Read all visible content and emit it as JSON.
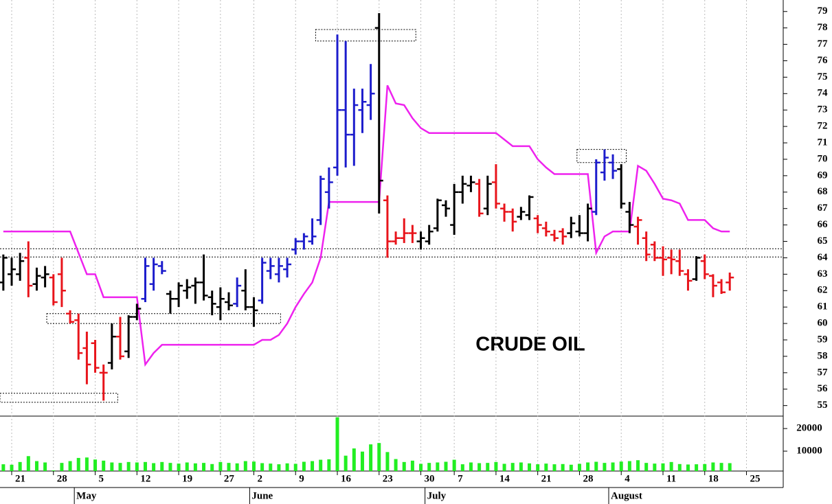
{
  "chart_data": {
    "type": "ohlc",
    "annotation": "CRUDE OIL",
    "x": [
      -1,
      0,
      1,
      2,
      3,
      4,
      5,
      6,
      7,
      8,
      9,
      10,
      11,
      12,
      13,
      14,
      15,
      16,
      17,
      18,
      19,
      20,
      21,
      22,
      23,
      24,
      25,
      26,
      27,
      28,
      29,
      30,
      31,
      32,
      33,
      34,
      35,
      36,
      37,
      38,
      39,
      40,
      41,
      42,
      43,
      44,
      45,
      46,
      47,
      48,
      49,
      50,
      51,
      52,
      53,
      54,
      55,
      56,
      57,
      58,
      59,
      60,
      61,
      62,
      63,
      64,
      65,
      66,
      67,
      68,
      69,
      70,
      71,
      72,
      73,
      74,
      75,
      76,
      77,
      78,
      79,
      80,
      81,
      82,
      83,
      84,
      85,
      86
    ],
    "open": [
      62.5,
      63.0,
      63.0,
      64.0,
      62.4,
      62.8,
      62.8,
      63.0,
      60.6,
      60.2,
      58.5,
      58.8,
      57.0,
      57.6,
      59.2,
      58.3,
      60.4,
      61.5,
      62.4,
      63.5,
      61.8,
      61.5,
      62.0,
      62.3,
      62.5,
      61.6,
      61.0,
      61.3,
      61.2,
      62.0,
      61.0,
      61.4,
      63.2,
      63.0,
      63.3,
      64.5,
      65.0,
      65.0,
      66.3,
      68.0,
      69.5,
      73.0,
      71.5,
      73.0,
      73.3,
      78.0,
      67.5,
      65.0,
      65.2,
      65.5,
      65.0,
      65.0,
      65.8,
      67.2,
      66.0,
      68.0,
      68.4,
      68.5,
      67.0,
      68.6,
      67.0,
      66.8,
      66.5,
      66.6,
      66.4,
      65.8,
      65.4,
      65.6,
      65.5,
      65.6,
      65.5,
      66.8,
      69.2,
      69.8,
      69.4,
      66.8,
      65.9,
      65.2,
      64.8,
      64.0,
      64.0,
      63.8,
      63.0,
      62.7,
      63.8,
      62.9,
      62.5,
      62.5
    ],
    "high": [
      64.2,
      64.0,
      64.3,
      65.0,
      63.4,
      63.5,
      63.0,
      64.0,
      60.8,
      60.6,
      59.5,
      59.0,
      57.5,
      60.0,
      60.4,
      60.5,
      61.2,
      64.0,
      64.0,
      63.8,
      62.0,
      62.5,
      62.7,
      62.8,
      64.2,
      62.0,
      62.2,
      61.9,
      62.8,
      63.3,
      61.6,
      64.0,
      64.0,
      64.0,
      64.0,
      65.2,
      65.5,
      66.4,
      69.0,
      69.5,
      77.6,
      77.2,
      74.3,
      74.3,
      75.8,
      78.9,
      67.8,
      65.6,
      66.4,
      66.0,
      65.6,
      66.0,
      67.6,
      67.5,
      68.5,
      69.0,
      69.0,
      68.8,
      69.0,
      69.7,
      67.3,
      67.0,
      67.1,
      67.8,
      66.6,
      66.2,
      65.7,
      65.8,
      66.5,
      66.6,
      67.3,
      70.0,
      70.6,
      70.3,
      69.7,
      67.4,
      66.5,
      65.6,
      65.0,
      64.7,
      64.5,
      64.5,
      63.3,
      64.1,
      64.2,
      63.0,
      62.7,
      63.1
    ],
    "low": [
      62.0,
      62.3,
      62.6,
      61.6,
      62.0,
      62.2,
      61.1,
      61.0,
      60.0,
      57.8,
      56.3,
      57.0,
      55.3,
      57.2,
      57.8,
      57.9,
      60.2,
      61.3,
      62.0,
      63.0,
      60.6,
      61.0,
      61.5,
      61.2,
      61.4,
      60.5,
      60.2,
      60.8,
      61.0,
      60.8,
      59.8,
      61.2,
      62.7,
      62.5,
      62.8,
      64.2,
      64.5,
      64.8,
      66.0,
      67.0,
      69.0,
      69.5,
      69.6,
      71.6,
      72.4,
      66.7,
      64.0,
      64.8,
      64.9,
      64.9,
      64.5,
      64.8,
      65.6,
      66.5,
      65.4,
      67.3,
      68.0,
      66.5,
      66.6,
      67.0,
      66.2,
      65.6,
      66.3,
      66.3,
      65.5,
      65.3,
      65.0,
      64.8,
      65.2,
      65.3,
      65.0,
      66.6,
      68.7,
      68.8,
      67.0,
      65.5,
      64.8,
      63.8,
      63.8,
      62.9,
      63.0,
      62.9,
      62.0,
      62.6,
      62.7,
      61.6,
      61.8,
      62.0
    ],
    "close": [
      64.0,
      63.3,
      63.8,
      62.3,
      62.9,
      63.0,
      61.3,
      62.0,
      60.1,
      58.2,
      57.5,
      57.3,
      57.0,
      59.2,
      58.0,
      60.4,
      60.9,
      63.5,
      63.6,
      63.2,
      61.5,
      62.3,
      62.2,
      62.5,
      61.7,
      61.2,
      61.5,
      61.1,
      62.3,
      61.0,
      60.8,
      63.7,
      63.5,
      63.5,
      63.6,
      65.0,
      65.3,
      65.3,
      68.8,
      68.6,
      73.0,
      71.5,
      73.3,
      73.5,
      74.0,
      68.7,
      65.0,
      65.2,
      65.5,
      65.5,
      65.2,
      65.6,
      67.5,
      67.0,
      68.0,
      68.5,
      68.6,
      66.7,
      68.5,
      67.3,
      66.8,
      66.2,
      66.8,
      67.7,
      66.0,
      65.6,
      65.2,
      65.3,
      66.1,
      65.5,
      67.0,
      69.8,
      70.1,
      69.3,
      67.3,
      66.0,
      66.3,
      64.2,
      64.0,
      63.9,
      63.9,
      63.2,
      62.6,
      64.0,
      63.0,
      62.3,
      61.9,
      62.8
    ],
    "colors": [
      "#000000",
      "#000000",
      "#000000",
      "#e8141b",
      "#000000",
      "#000000",
      "#e8141b",
      "#e8141b",
      "#e8141b",
      "#e8141b",
      "#e8141b",
      "#e8141b",
      "#e8141b",
      "#000000",
      "#e8141b",
      "#000000",
      "#000000",
      "#1c1ccc",
      "#1c1ccc",
      "#1c1ccc",
      "#000000",
      "#000000",
      "#000000",
      "#000000",
      "#000000",
      "#000000",
      "#000000",
      "#000000",
      "#1c1ccc",
      "#000000",
      "#000000",
      "#1c1ccc",
      "#1c1ccc",
      "#1c1ccc",
      "#1c1ccc",
      "#1c1ccc",
      "#1c1ccc",
      "#1c1ccc",
      "#1c1ccc",
      "#1c1ccc",
      "#1c1ccc",
      "#1c1ccc",
      "#1c1ccc",
      "#1c1ccc",
      "#1c1ccc",
      "#000000",
      "#e8141b",
      "#e8141b",
      "#e8141b",
      "#e8141b",
      "#000000",
      "#000000",
      "#000000",
      "#000000",
      "#000000",
      "#000000",
      "#000000",
      "#e8141b",
      "#000000",
      "#e8141b",
      "#e8141b",
      "#e8141b",
      "#000000",
      "#000000",
      "#e8141b",
      "#e8141b",
      "#e8141b",
      "#e8141b",
      "#000000",
      "#000000",
      "#000000",
      "#1c1ccc",
      "#1c1ccc",
      "#1c1ccc",
      "#000000",
      "#000000",
      "#e8141b",
      "#e8141b",
      "#e8141b",
      "#e8141b",
      "#e8141b",
      "#e8141b",
      "#e8141b",
      "#000000",
      "#e8141b",
      "#e8141b",
      "#e8141b",
      "#e8141b"
    ],
    "stop_line": {
      "color": "#ee22ee",
      "values": [
        65.6,
        65.6,
        65.6,
        65.6,
        65.6,
        65.6,
        65.6,
        65.6,
        65.6,
        64.3,
        63.0,
        63.0,
        61.6,
        61.6,
        61.6,
        61.6,
        61.6,
        57.5,
        58.2,
        58.7,
        58.7,
        58.7,
        58.7,
        58.7,
        58.7,
        58.7,
        58.7,
        58.7,
        58.7,
        58.7,
        58.7,
        59.0,
        59.0,
        59.3,
        60.0,
        61.0,
        61.8,
        62.5,
        64.0,
        67.4,
        67.4,
        67.4,
        67.4,
        67.4,
        67.4,
        67.4,
        74.5,
        73.4,
        73.3,
        72.5,
        71.9,
        71.6,
        71.6,
        71.6,
        71.6,
        71.6,
        71.6,
        71.6,
        71.6,
        71.6,
        71.2,
        70.8,
        70.8,
        70.8,
        70.0,
        69.5,
        69.1,
        69.1,
        69.1,
        69.1,
        69.1,
        64.3,
        65.3,
        65.6,
        65.6,
        65.6,
        69.6,
        69.3,
        68.5,
        67.6,
        67.5,
        67.3,
        66.3,
        66.3,
        66.3,
        65.8,
        65.6,
        65.6
      ]
    },
    "volume": {
      "color": "#22ee22",
      "values": [
        4200,
        4000,
        5200,
        7800,
        5600,
        5000,
        1500,
        4800,
        5600,
        7000,
        7200,
        6300,
        5800,
        5000,
        4800,
        5200,
        5000,
        5200,
        4700,
        5200,
        4800,
        4500,
        5000,
        4600,
        4800,
        4300,
        5200,
        4800,
        4600,
        5600,
        5400,
        4700,
        4500,
        4200,
        4600,
        4400,
        5300,
        5600,
        6200,
        6400,
        25000,
        8000,
        11200,
        9800,
        13000,
        13600,
        9600,
        6500,
        5200,
        5800,
        4400,
        4800,
        5000,
        5300,
        6200,
        4200,
        5000,
        4700,
        4800,
        5200,
        4400,
        4800,
        5000,
        4600,
        4200,
        4500,
        4200,
        4300,
        4000,
        4400,
        5000,
        5300,
        4800,
        5000,
        5400,
        5600,
        6000,
        4800,
        4500,
        4600,
        5200,
        4300,
        4100,
        4200,
        4300,
        5000,
        4800,
        4700
      ],
      "ylim": [
        1200,
        25200
      ],
      "yticks": [
        10000,
        20000
      ]
    },
    "xlim": [
      -1.4,
      92.4
    ],
    "ylim": [
      54.4,
      79.7
    ],
    "yticks": [
      55,
      56,
      57,
      58,
      59,
      60,
      61,
      62,
      63,
      64,
      65,
      66,
      67,
      68,
      69,
      70,
      71,
      72,
      73,
      74,
      75,
      76,
      77,
      78,
      79
    ],
    "xticks": [
      {
        "value": 0,
        "label": "21"
      },
      {
        "value": 5,
        "label": "28"
      },
      {
        "value": 10,
        "label": "5"
      },
      {
        "value": 15,
        "label": "12"
      },
      {
        "value": 20,
        "label": "19"
      },
      {
        "value": 25,
        "label": "27"
      },
      {
        "value": 29,
        "label": "2"
      },
      {
        "value": 34,
        "label": "9"
      },
      {
        "value": 39,
        "label": "16"
      },
      {
        "value": 44,
        "label": "23"
      },
      {
        "value": 49,
        "label": "30"
      },
      {
        "value": 53,
        "label": "7"
      },
      {
        "value": 58,
        "label": "14"
      },
      {
        "value": 63,
        "label": "21"
      },
      {
        "value": 68,
        "label": "28"
      },
      {
        "value": 73,
        "label": "4"
      },
      {
        "value": 78,
        "label": "11"
      },
      {
        "value": 83,
        "label": "18"
      },
      {
        "value": 88,
        "label": "25"
      }
    ],
    "months": [
      {
        "value": 8,
        "label": "May"
      },
      {
        "value": 29,
        "label": "June"
      },
      {
        "value": 50,
        "label": "July"
      },
      {
        "value": 72,
        "label": "August"
      }
    ],
    "reference_lines": [
      64.55,
      64.05
    ],
    "boxes": [
      {
        "x": [
          -1.4,
          12.7
        ],
        "y": [
          55.2,
          55.75
        ]
      },
      {
        "x": [
          4.2,
          32.2
        ],
        "y": [
          60.0,
          60.6
        ]
      },
      {
        "x": [
          36.4,
          48.4
        ],
        "y": [
          77.2,
          77.9
        ]
      },
      {
        "x": [
          67.7,
          73.6
        ],
        "y": [
          69.8,
          70.6
        ]
      }
    ],
    "grid": true
  }
}
